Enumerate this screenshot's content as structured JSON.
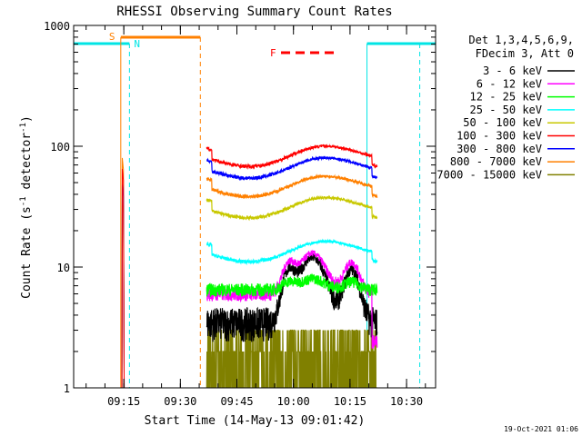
{
  "chart_data": {
    "type": "line",
    "title": "RHESSI Observing Summary Count Rates",
    "xlabel": "Start Time (14-May-13 09:01:42)",
    "ylabel_main": "Count Rate (s",
    "ylabel_sup1": "-1",
    "ylabel_mid": " detector",
    "ylabel_sup2": "-1",
    "ylabel_end": ")",
    "y_scale": "log",
    "ylim": [
      1,
      1000
    ],
    "xlim_minutes": [
      0,
      96
    ],
    "x_ticks": [
      {
        "minute": 13.3,
        "label": "09:15"
      },
      {
        "minute": 28.3,
        "label": "09:30"
      },
      {
        "minute": 43.3,
        "label": "09:45"
      },
      {
        "minute": 58.3,
        "label": "10:00"
      },
      {
        "minute": 73.3,
        "label": "10:15"
      },
      {
        "minute": 88.3,
        "label": "10:30"
      }
    ],
    "y_ticks": [
      {
        "value": 1,
        "label": "1"
      },
      {
        "value": 10,
        "label": "10"
      },
      {
        "value": 100,
        "label": "100"
      },
      {
        "value": 1000,
        "label": "1000"
      }
    ],
    "legend_header": [
      "Det 1,3,4,5,6,9,",
      "FDecim 3, Att 0"
    ],
    "legend_position": "right",
    "flag_labels": {
      "saa": "S",
      "night": "N",
      "flare": "F"
    },
    "footer_date": "19-Oct-2021 01:06",
    "data_window_minutes": [
      35.3,
      80.5
    ],
    "series": [
      {
        "name": "3 - 6 keV",
        "color": "#000000",
        "base": 4.0,
        "bump": 8.5
      },
      {
        "name": "6 - 12 keV",
        "color": "#ff00ff",
        "base": 6.0,
        "bump": 7.0
      },
      {
        "name": "12 - 25 keV",
        "color": "#00ff00",
        "base": 6.5,
        "bump": 1.5
      },
      {
        "name": "25 - 50 keV",
        "color": "#00ffff",
        "base": 13.0,
        "bump": 3.0
      },
      {
        "name": "50 - 100 keV",
        "color": "#cccc00",
        "base": 30.0,
        "bump": 5.0
      },
      {
        "name": "100 - 300 keV",
        "color": "#ff0000",
        "base": 80.0,
        "bump": 10.0
      },
      {
        "name": "300 - 800 keV",
        "color": "#0000ff",
        "base": 64.0,
        "bump": 7.0
      },
      {
        "name": "800 - 7000 keV",
        "color": "#ff8000",
        "base": 45.0,
        "bump": 8.0
      },
      {
        "name": "7000 - 15000 keV",
        "color": "#808000",
        "base": 1.6,
        "bump": 0.0
      }
    ]
  }
}
